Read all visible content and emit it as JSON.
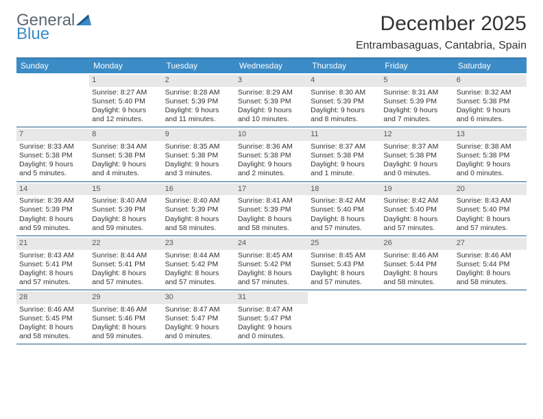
{
  "logo": {
    "top": "General",
    "bottom": "Blue"
  },
  "title": "December 2025",
  "location": "Entrambasaguas, Cantabria, Spain",
  "colors": {
    "header_bg": "#3b8bc6",
    "header_text": "#ffffff",
    "border": "#1e5a8a",
    "daynum_bg": "#e8e8e8",
    "text": "#333333",
    "logo_gray": "#5b6770",
    "logo_blue": "#3b8bc6"
  },
  "fonts": {
    "title_size": 30,
    "location_size": 16,
    "dow_size": 12,
    "cell_size": 10.5
  },
  "days_of_week": [
    "Sunday",
    "Monday",
    "Tuesday",
    "Wednesday",
    "Thursday",
    "Friday",
    "Saturday"
  ],
  "weeks": [
    [
      null,
      {
        "n": "1",
        "sr": "Sunrise: 8:27 AM",
        "ss": "Sunset: 5:40 PM",
        "dl1": "Daylight: 9 hours",
        "dl2": "and 12 minutes."
      },
      {
        "n": "2",
        "sr": "Sunrise: 8:28 AM",
        "ss": "Sunset: 5:39 PM",
        "dl1": "Daylight: 9 hours",
        "dl2": "and 11 minutes."
      },
      {
        "n": "3",
        "sr": "Sunrise: 8:29 AM",
        "ss": "Sunset: 5:39 PM",
        "dl1": "Daylight: 9 hours",
        "dl2": "and 10 minutes."
      },
      {
        "n": "4",
        "sr": "Sunrise: 8:30 AM",
        "ss": "Sunset: 5:39 PM",
        "dl1": "Daylight: 9 hours",
        "dl2": "and 8 minutes."
      },
      {
        "n": "5",
        "sr": "Sunrise: 8:31 AM",
        "ss": "Sunset: 5:39 PM",
        "dl1": "Daylight: 9 hours",
        "dl2": "and 7 minutes."
      },
      {
        "n": "6",
        "sr": "Sunrise: 8:32 AM",
        "ss": "Sunset: 5:38 PM",
        "dl1": "Daylight: 9 hours",
        "dl2": "and 6 minutes."
      }
    ],
    [
      {
        "n": "7",
        "sr": "Sunrise: 8:33 AM",
        "ss": "Sunset: 5:38 PM",
        "dl1": "Daylight: 9 hours",
        "dl2": "and 5 minutes."
      },
      {
        "n": "8",
        "sr": "Sunrise: 8:34 AM",
        "ss": "Sunset: 5:38 PM",
        "dl1": "Daylight: 9 hours",
        "dl2": "and 4 minutes."
      },
      {
        "n": "9",
        "sr": "Sunrise: 8:35 AM",
        "ss": "Sunset: 5:38 PM",
        "dl1": "Daylight: 9 hours",
        "dl2": "and 3 minutes."
      },
      {
        "n": "10",
        "sr": "Sunrise: 8:36 AM",
        "ss": "Sunset: 5:38 PM",
        "dl1": "Daylight: 9 hours",
        "dl2": "and 2 minutes."
      },
      {
        "n": "11",
        "sr": "Sunrise: 8:37 AM",
        "ss": "Sunset: 5:38 PM",
        "dl1": "Daylight: 9 hours",
        "dl2": "and 1 minute."
      },
      {
        "n": "12",
        "sr": "Sunrise: 8:37 AM",
        "ss": "Sunset: 5:38 PM",
        "dl1": "Daylight: 9 hours",
        "dl2": "and 0 minutes."
      },
      {
        "n": "13",
        "sr": "Sunrise: 8:38 AM",
        "ss": "Sunset: 5:38 PM",
        "dl1": "Daylight: 9 hours",
        "dl2": "and 0 minutes."
      }
    ],
    [
      {
        "n": "14",
        "sr": "Sunrise: 8:39 AM",
        "ss": "Sunset: 5:39 PM",
        "dl1": "Daylight: 8 hours",
        "dl2": "and 59 minutes."
      },
      {
        "n": "15",
        "sr": "Sunrise: 8:40 AM",
        "ss": "Sunset: 5:39 PM",
        "dl1": "Daylight: 8 hours",
        "dl2": "and 59 minutes."
      },
      {
        "n": "16",
        "sr": "Sunrise: 8:40 AM",
        "ss": "Sunset: 5:39 PM",
        "dl1": "Daylight: 8 hours",
        "dl2": "and 58 minutes."
      },
      {
        "n": "17",
        "sr": "Sunrise: 8:41 AM",
        "ss": "Sunset: 5:39 PM",
        "dl1": "Daylight: 8 hours",
        "dl2": "and 58 minutes."
      },
      {
        "n": "18",
        "sr": "Sunrise: 8:42 AM",
        "ss": "Sunset: 5:40 PM",
        "dl1": "Daylight: 8 hours",
        "dl2": "and 57 minutes."
      },
      {
        "n": "19",
        "sr": "Sunrise: 8:42 AM",
        "ss": "Sunset: 5:40 PM",
        "dl1": "Daylight: 8 hours",
        "dl2": "and 57 minutes."
      },
      {
        "n": "20",
        "sr": "Sunrise: 8:43 AM",
        "ss": "Sunset: 5:40 PM",
        "dl1": "Daylight: 8 hours",
        "dl2": "and 57 minutes."
      }
    ],
    [
      {
        "n": "21",
        "sr": "Sunrise: 8:43 AM",
        "ss": "Sunset: 5:41 PM",
        "dl1": "Daylight: 8 hours",
        "dl2": "and 57 minutes."
      },
      {
        "n": "22",
        "sr": "Sunrise: 8:44 AM",
        "ss": "Sunset: 5:41 PM",
        "dl1": "Daylight: 8 hours",
        "dl2": "and 57 minutes."
      },
      {
        "n": "23",
        "sr": "Sunrise: 8:44 AM",
        "ss": "Sunset: 5:42 PM",
        "dl1": "Daylight: 8 hours",
        "dl2": "and 57 minutes."
      },
      {
        "n": "24",
        "sr": "Sunrise: 8:45 AM",
        "ss": "Sunset: 5:42 PM",
        "dl1": "Daylight: 8 hours",
        "dl2": "and 57 minutes."
      },
      {
        "n": "25",
        "sr": "Sunrise: 8:45 AM",
        "ss": "Sunset: 5:43 PM",
        "dl1": "Daylight: 8 hours",
        "dl2": "and 57 minutes."
      },
      {
        "n": "26",
        "sr": "Sunrise: 8:46 AM",
        "ss": "Sunset: 5:44 PM",
        "dl1": "Daylight: 8 hours",
        "dl2": "and 58 minutes."
      },
      {
        "n": "27",
        "sr": "Sunrise: 8:46 AM",
        "ss": "Sunset: 5:44 PM",
        "dl1": "Daylight: 8 hours",
        "dl2": "and 58 minutes."
      }
    ],
    [
      {
        "n": "28",
        "sr": "Sunrise: 8:46 AM",
        "ss": "Sunset: 5:45 PM",
        "dl1": "Daylight: 8 hours",
        "dl2": "and 58 minutes."
      },
      {
        "n": "29",
        "sr": "Sunrise: 8:46 AM",
        "ss": "Sunset: 5:46 PM",
        "dl1": "Daylight: 8 hours",
        "dl2": "and 59 minutes."
      },
      {
        "n": "30",
        "sr": "Sunrise: 8:47 AM",
        "ss": "Sunset: 5:47 PM",
        "dl1": "Daylight: 9 hours",
        "dl2": "and 0 minutes."
      },
      {
        "n": "31",
        "sr": "Sunrise: 8:47 AM",
        "ss": "Sunset: 5:47 PM",
        "dl1": "Daylight: 9 hours",
        "dl2": "and 0 minutes."
      },
      null,
      null,
      null
    ]
  ]
}
